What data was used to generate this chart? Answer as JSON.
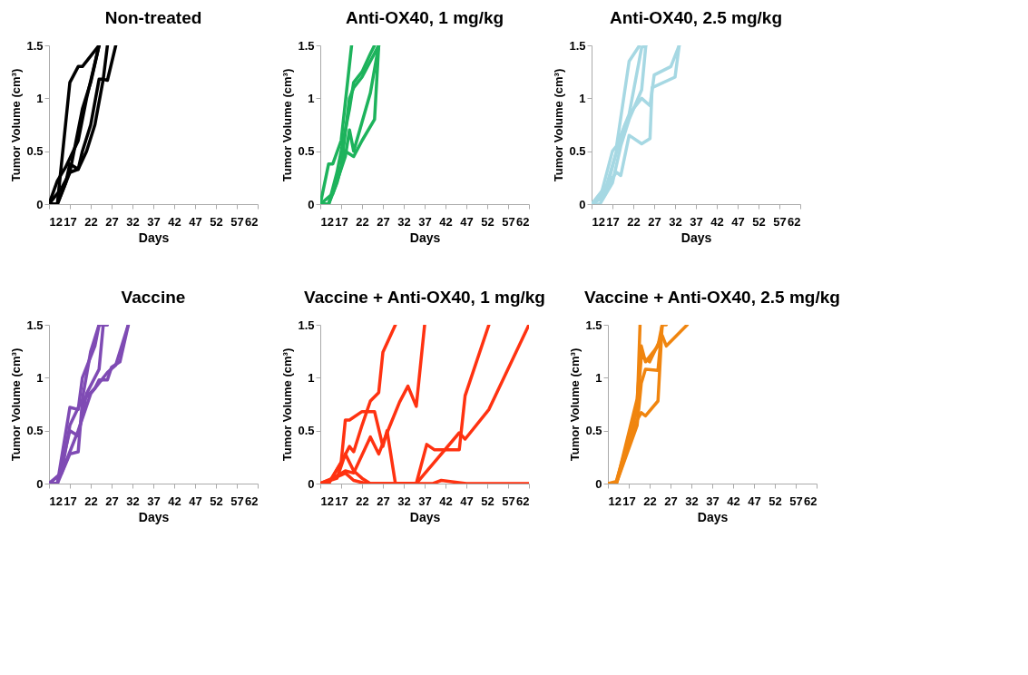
{
  "chart_data": [
    {
      "type": "line",
      "title": "Non-treated",
      "xlabel": "Days",
      "ylabel": "Tumor Volume (cm³)",
      "xlim": [
        12,
        62
      ],
      "xticks": [
        12,
        17,
        22,
        27,
        32,
        37,
        42,
        47,
        52,
        57,
        62
      ],
      "ylim": [
        0,
        1.5
      ],
      "yticks": [
        0,
        0.5,
        1,
        1.5
      ],
      "series": [
        {
          "color": "#000000",
          "x": [
            12,
            14,
            17,
            19,
            20,
            24
          ],
          "values": [
            0,
            0,
            1.15,
            1.3,
            1.3,
            1.5
          ]
        },
        {
          "color": "#000000",
          "x": [
            12,
            14,
            16,
            19,
            21,
            24
          ],
          "values": [
            0,
            0.22,
            0.35,
            0.6,
            1.0,
            1.5
          ]
        },
        {
          "color": "#000000",
          "x": [
            12,
            14,
            16,
            17,
            19,
            20,
            22,
            24,
            25,
            26
          ],
          "values": [
            0,
            0,
            0.2,
            0.38,
            0.33,
            0.5,
            0.75,
            1.18,
            1.18,
            1.5
          ]
        },
        {
          "color": "#000000",
          "x": [
            12,
            14,
            17,
            19,
            21,
            23,
            25,
            26,
            28
          ],
          "values": [
            0,
            0,
            0.3,
            0.33,
            0.5,
            0.75,
            1.18,
            1.17,
            1.5
          ]
        },
        {
          "color": "#000000",
          "x": [
            12,
            15,
            17,
            20,
            22,
            24
          ],
          "values": [
            0,
            0.15,
            0.3,
            0.9,
            1.15,
            1.5
          ]
        }
      ]
    },
    {
      "type": "line",
      "title": "Anti-OX40, 1 mg/kg",
      "xlabel": "Days",
      "ylabel": "Tumor Volume (cm³)",
      "xlim": [
        12,
        62
      ],
      "xticks": [
        12,
        17,
        22,
        27,
        32,
        37,
        42,
        47,
        52,
        57,
        62
      ],
      "ylim": [
        0,
        1.5
      ],
      "yticks": [
        0,
        0.5,
        1,
        1.5
      ],
      "series": [
        {
          "color": "#1db35c",
          "x": [
            12,
            14,
            15,
            17,
            19.5
          ],
          "values": [
            0,
            0.38,
            0.38,
            0.6,
            1.5
          ]
        },
        {
          "color": "#1db35c",
          "x": [
            12,
            14,
            16,
            18,
            19,
            20,
            22,
            24,
            25
          ],
          "values": [
            0,
            0,
            0.3,
            0.7,
            0.9,
            1.15,
            1.25,
            1.42,
            1.5
          ]
        },
        {
          "color": "#1db35c",
          "x": [
            12,
            14,
            16,
            18,
            20,
            22,
            25,
            26
          ],
          "values": [
            0,
            0,
            0.2,
            0.5,
            0.45,
            0.6,
            0.8,
            1.5
          ]
        },
        {
          "color": "#1db35c",
          "x": [
            12,
            15,
            18,
            19,
            20,
            24,
            26
          ],
          "values": [
            0,
            0.1,
            0.45,
            0.7,
            0.5,
            1.05,
            1.5
          ]
        },
        {
          "color": "#1db35c",
          "x": [
            12,
            14,
            17,
            19,
            20,
            22,
            26
          ],
          "values": [
            0,
            0,
            0.35,
            1.0,
            1.1,
            1.2,
            1.5
          ]
        }
      ]
    },
    {
      "type": "line",
      "title": "Anti-OX40, 2.5 mg/kg",
      "xlabel": "Days",
      "ylabel": "Tumor Volume (cm³)",
      "xlim": [
        12,
        62
      ],
      "xticks": [
        12,
        17,
        22,
        27,
        32,
        37,
        42,
        47,
        52,
        57,
        62
      ],
      "ylim": [
        0,
        1.5
      ],
      "yticks": [
        0,
        0.5,
        1,
        1.5
      ],
      "series": [
        {
          "color": "#a6d8e3",
          "x": [
            12,
            14,
            17,
            18,
            21,
            23.5
          ],
          "values": [
            0,
            0.05,
            0.5,
            0.55,
            1.35,
            1.5
          ]
        },
        {
          "color": "#a6d8e3",
          "x": [
            12,
            14,
            17,
            19,
            21,
            24,
            25
          ],
          "values": [
            0,
            0,
            0.2,
            0.55,
            0.8,
            1.08,
            1.5
          ]
        },
        {
          "color": "#a6d8e3",
          "x": [
            12,
            14,
            17,
            18,
            19,
            21,
            24,
            26,
            26.5,
            32,
            33
          ],
          "values": [
            0,
            0.05,
            0.25,
            0.3,
            0.27,
            0.65,
            0.57,
            0.62,
            1.1,
            1.2,
            1.5
          ]
        },
        {
          "color": "#a6d8e3",
          "x": [
            12,
            15,
            18,
            20,
            22,
            24,
            26,
            27,
            31,
            33
          ],
          "values": [
            0,
            0.1,
            0.5,
            0.75,
            0.9,
            1.0,
            0.93,
            1.22,
            1.3,
            1.5
          ]
        },
        {
          "color": "#a6d8e3",
          "x": [
            12,
            16,
            19,
            21,
            24,
            25
          ],
          "values": [
            0,
            0.2,
            0.65,
            0.85,
            1.48,
            1.5
          ]
        }
      ]
    },
    {
      "type": "line",
      "title": "Vaccine",
      "xlabel": "Days",
      "ylabel": "Tumor Volume (cm³)",
      "xlim": [
        12,
        62
      ],
      "xticks": [
        12,
        17,
        22,
        27,
        32,
        37,
        42,
        47,
        52,
        57,
        62
      ],
      "ylim": [
        0,
        1.5
      ],
      "yticks": [
        0,
        0.5,
        1,
        1.5
      ],
      "series": [
        {
          "color": "#7f4bb4",
          "x": [
            12,
            14,
            17,
            19,
            20,
            23,
            24
          ],
          "values": [
            0,
            0,
            0.72,
            0.7,
            1.0,
            1.3,
            1.5
          ]
        },
        {
          "color": "#7f4bb4",
          "x": [
            12,
            14,
            17,
            19,
            21,
            24,
            25,
            26
          ],
          "values": [
            0,
            0,
            0.5,
            0.45,
            0.85,
            1.08,
            1.5,
            1.5
          ]
        },
        {
          "color": "#7f4bb4",
          "x": [
            12,
            14,
            17,
            19,
            20,
            23,
            24,
            26,
            27,
            29,
            31
          ],
          "values": [
            0,
            0,
            0.28,
            0.3,
            0.78,
            0.9,
            0.98,
            0.98,
            1.1,
            1.15,
            1.5
          ]
        },
        {
          "color": "#7f4bb4",
          "x": [
            12,
            15,
            17,
            19,
            22,
            26,
            28,
            31
          ],
          "values": [
            0,
            0.1,
            0.3,
            0.5,
            0.85,
            1.05,
            1.12,
            1.5
          ]
        },
        {
          "color": "#7f4bb4",
          "x": [
            12,
            15,
            17,
            20,
            22,
            24,
            26
          ],
          "values": [
            0,
            0.1,
            0.55,
            0.8,
            1.25,
            1.5,
            1.5
          ]
        }
      ]
    },
    {
      "type": "line",
      "title": "Vaccine + Anti-OX40, 1 mg/kg",
      "xlabel": "Days",
      "ylabel": "Tumor Volume (cm³)",
      "xlim": [
        12,
        62
      ],
      "xticks": [
        12,
        17,
        22,
        27,
        32,
        37,
        42,
        47,
        52,
        57,
        62
      ],
      "ylim": [
        0,
        1.5
      ],
      "yticks": [
        0,
        0.5,
        1,
        1.5
      ],
      "series": [
        {
          "color": "#ff3211",
          "x": [
            12,
            14,
            17,
            19,
            20,
            22,
            24,
            26,
            27,
            30
          ],
          "values": [
            0,
            0,
            0.2,
            0.35,
            0.3,
            0.55,
            0.78,
            0.86,
            1.24,
            1.5
          ]
        },
        {
          "color": "#ff3211",
          "x": [
            12,
            15,
            18,
            20,
            24,
            26,
            28,
            31,
            33,
            35,
            37
          ],
          "values": [
            0,
            0.05,
            0.12,
            0.1,
            0.44,
            0.28,
            0.48,
            0.77,
            0.92,
            0.73,
            1.5
          ]
        },
        {
          "color": "#ff3211",
          "x": [
            12,
            14,
            17,
            18,
            19,
            22,
            25,
            27,
            28,
            30,
            35,
            37.5,
            39.3,
            45.3,
            46.7,
            52.4
          ],
          "values": [
            0,
            0,
            0.2,
            0.6,
            0.6,
            0.68,
            0.68,
            0.35,
            0.5,
            0,
            0,
            0.37,
            0.32,
            0.32,
            0.83,
            1.5
          ]
        },
        {
          "color": "#ff3211",
          "x": [
            12,
            16,
            18,
            20,
            22,
            24,
            39,
            41,
            47,
            62
          ],
          "values": [
            0,
            0.05,
            0.28,
            0.12,
            0.05,
            0,
            0,
            0.03,
            0,
            0
          ]
        },
        {
          "color": "#ff3211",
          "x": [
            12,
            17,
            18,
            20,
            23,
            35,
            39.3,
            45.3,
            46.7,
            52.4,
            62
          ],
          "values": [
            0,
            0.08,
            0.1,
            0.03,
            0,
            0,
            0.2,
            0.48,
            0.42,
            0.7,
            1.5
          ]
        }
      ]
    },
    {
      "type": "line",
      "title": "Vaccine + Anti-OX40, 2.5 mg/kg",
      "xlabel": "Days",
      "ylabel": "Tumor Volume (cm³)",
      "xlim": [
        12,
        62
      ],
      "xticks": [
        12,
        17,
        22,
        27,
        32,
        37,
        42,
        47,
        52,
        57,
        62
      ],
      "ylim": [
        0,
        1.5
      ],
      "yticks": [
        0,
        0.5,
        1,
        1.5
      ],
      "series": [
        {
          "color": "#f0850f",
          "x": [
            12,
            14,
            19,
            19.7
          ],
          "values": [
            0,
            0.02,
            0.7,
            1.5
          ]
        },
        {
          "color": "#f0850f",
          "x": [
            12,
            14,
            19,
            20,
            21,
            24,
            25
          ],
          "values": [
            0,
            0,
            0.8,
            1.3,
            1.15,
            1.3,
            1.5
          ]
        },
        {
          "color": "#f0850f",
          "x": [
            12,
            14,
            19,
            20,
            21,
            24,
            25
          ],
          "values": [
            0,
            0,
            0.55,
            0.95,
            1.08,
            1.07,
            1.5
          ]
        },
        {
          "color": "#f0850f",
          "x": [
            12,
            14,
            19,
            20,
            21,
            24,
            25,
            26
          ],
          "values": [
            0,
            0,
            0.6,
            0.67,
            0.64,
            0.78,
            1.5,
            1.5
          ]
        },
        {
          "color": "#f0850f",
          "x": [
            12,
            14,
            19,
            20,
            22,
            25,
            26,
            31
          ],
          "values": [
            0,
            0,
            0.7,
            1.2,
            1.15,
            1.4,
            1.3,
            1.5
          ]
        }
      ]
    }
  ]
}
